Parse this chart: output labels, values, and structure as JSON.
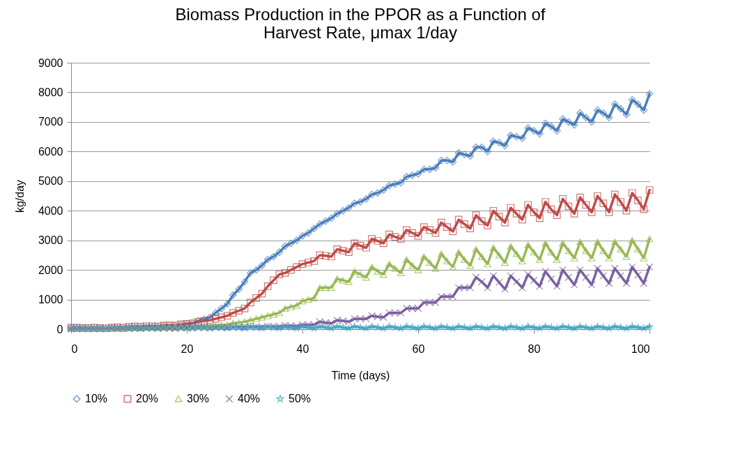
{
  "chart_data": {
    "type": "line",
    "title": "Biomass Production in the PPOR as a Function of Harvest Rate, μmax 1/day",
    "xlabel": "Time (days)",
    "ylabel": "kg/day",
    "x": [
      0,
      1,
      2,
      3,
      4,
      5,
      6,
      7,
      8,
      9,
      10,
      11,
      12,
      13,
      14,
      15,
      16,
      17,
      18,
      19,
      20,
      21,
      22,
      23,
      24,
      25,
      26,
      27,
      28,
      29,
      30,
      31,
      32,
      33,
      34,
      35,
      36,
      37,
      38,
      39,
      40,
      41,
      42,
      43,
      44,
      45,
      46,
      47,
      48,
      49,
      50,
      51,
      52,
      53,
      54,
      55,
      56,
      57,
      58,
      59,
      60,
      61,
      62,
      63,
      64,
      65,
      66,
      67,
      68,
      69,
      70,
      71,
      72,
      73,
      74,
      75,
      76,
      77,
      78,
      79,
      80,
      81,
      82,
      83,
      84,
      85,
      86,
      87,
      88,
      89,
      90,
      91,
      92,
      93,
      94,
      95,
      96,
      97,
      98,
      99,
      100
    ],
    "xlim": [
      0,
      100
    ],
    "xticks": [
      0,
      20,
      40,
      60,
      80,
      100
    ],
    "ylim": [
      0,
      9000
    ],
    "yticks": [
      0,
      1000,
      2000,
      3000,
      4000,
      5000,
      6000,
      7000,
      8000,
      9000
    ],
    "grid": "y",
    "legend": "bottom",
    "line_style": "solid",
    "series": [
      {
        "name": "10%",
        "color": "#4a7ebb",
        "marker": "diamond",
        "values": [
          50,
          40,
          30,
          20,
          30,
          30,
          20,
          40,
          40,
          30,
          50,
          60,
          50,
          70,
          80,
          70,
          100,
          120,
          110,
          150,
          170,
          200,
          280,
          330,
          400,
          550,
          700,
          850,
          1150,
          1350,
          1600,
          1900,
          2000,
          2150,
          2350,
          2450,
          2600,
          2800,
          2900,
          3000,
          3150,
          3250,
          3400,
          3550,
          3650,
          3750,
          3900,
          4000,
          4100,
          4250,
          4300,
          4400,
          4550,
          4600,
          4700,
          4850,
          4900,
          4950,
          5150,
          5200,
          5250,
          5400,
          5400,
          5450,
          5700,
          5700,
          5650,
          5950,
          5900,
          5850,
          6150,
          6150,
          6000,
          6350,
          6300,
          6200,
          6550,
          6500,
          6450,
          6800,
          6700,
          6600,
          6950,
          6850,
          6700,
          7100,
          7000,
          6900,
          7300,
          7150,
          7000,
          7400,
          7300,
          7150,
          7600,
          7450,
          7250,
          7750,
          7600,
          7400,
          7950
        ]
      },
      {
        "name": "20%",
        "color": "#be4b48",
        "marker": "square",
        "values": [
          50,
          50,
          40,
          40,
          50,
          40,
          30,
          50,
          60,
          50,
          80,
          90,
          80,
          100,
          100,
          90,
          120,
          130,
          120,
          160,
          180,
          200,
          250,
          280,
          300,
          350,
          400,
          450,
          550,
          620,
          700,
          900,
          1050,
          1200,
          1450,
          1650,
          1850,
          1900,
          2000,
          2100,
          2200,
          2250,
          2300,
          2500,
          2480,
          2450,
          2700,
          2650,
          2600,
          2900,
          2820,
          2750,
          3050,
          2980,
          2900,
          3200,
          3120,
          3050,
          3350,
          3250,
          3150,
          3450,
          3350,
          3250,
          3600,
          3450,
          3300,
          3700,
          3550,
          3400,
          3850,
          3650,
          3500,
          4000,
          3800,
          3600,
          4100,
          3900,
          3700,
          4200,
          3950,
          3750,
          4300,
          4050,
          3850,
          4400,
          4150,
          3900,
          4450,
          4200,
          3950,
          4500,
          4250,
          3950,
          4550,
          4300,
          4000,
          4600,
          4350,
          4050,
          4700
        ]
      },
      {
        "name": "30%",
        "color": "#98b954",
        "marker": "triangle",
        "values": [
          20,
          20,
          20,
          20,
          20,
          20,
          30,
          30,
          30,
          30,
          40,
          40,
          40,
          50,
          50,
          50,
          60,
          60,
          60,
          70,
          70,
          80,
          90,
          100,
          110,
          120,
          140,
          150,
          200,
          220,
          250,
          300,
          350,
          400,
          450,
          500,
          550,
          700,
          750,
          800,
          950,
          1000,
          1050,
          1400,
          1400,
          1400,
          1700,
          1650,
          1600,
          1950,
          1850,
          1750,
          2100,
          1950,
          1850,
          2200,
          2050,
          1900,
          2350,
          2150,
          2000,
          2450,
          2250,
          2050,
          2550,
          2300,
          2100,
          2600,
          2350,
          2150,
          2700,
          2450,
          2200,
          2750,
          2500,
          2250,
          2800,
          2550,
          2300,
          2850,
          2600,
          2350,
          2900,
          2600,
          2350,
          2900,
          2650,
          2400,
          2950,
          2650,
          2400,
          2950,
          2650,
          2400,
          2950,
          2700,
          2450,
          3000,
          2700,
          2400,
          3050
        ]
      },
      {
        "name": "40%",
        "color": "#7d60a0",
        "marker": "cross",
        "values": [
          10,
          10,
          10,
          10,
          10,
          10,
          10,
          20,
          20,
          20,
          20,
          20,
          20,
          30,
          30,
          30,
          30,
          30,
          30,
          40,
          40,
          40,
          50,
          50,
          50,
          60,
          60,
          60,
          70,
          70,
          70,
          80,
          80,
          80,
          90,
          90,
          90,
          120,
          110,
          100,
          150,
          150,
          150,
          250,
          220,
          200,
          300,
          280,
          250,
          350,
          350,
          350,
          450,
          420,
          400,
          550,
          550,
          550,
          700,
          700,
          700,
          900,
          900,
          900,
          1100,
          1100,
          1100,
          1400,
          1400,
          1400,
          1750,
          1600,
          1400,
          1800,
          1580,
          1350,
          1800,
          1600,
          1400,
          1850,
          1650,
          1450,
          1950,
          1700,
          1450,
          2000,
          1750,
          1500,
          2000,
          1750,
          1500,
          2050,
          1800,
          1550,
          2050,
          1800,
          1550,
          2100,
          1830,
          1550,
          2100
        ]
      },
      {
        "name": "50%",
        "color": "#46aac5",
        "marker": "star",
        "values": [
          30,
          40,
          30,
          30,
          40,
          30,
          30,
          40,
          30,
          30,
          40,
          40,
          30,
          40,
          40,
          30,
          50,
          40,
          30,
          50,
          40,
          30,
          60,
          50,
          30,
          60,
          50,
          30,
          70,
          50,
          30,
          80,
          50,
          30,
          80,
          50,
          30,
          80,
          50,
          30,
          90,
          60,
          30,
          90,
          60,
          30,
          90,
          60,
          30,
          90,
          60,
          30,
          90,
          60,
          30,
          90,
          60,
          30,
          90,
          60,
          30,
          90,
          60,
          30,
          90,
          60,
          30,
          90,
          60,
          30,
          90,
          60,
          30,
          90,
          60,
          30,
          90,
          60,
          30,
          90,
          60,
          30,
          90,
          60,
          30,
          90,
          60,
          30,
          90,
          60,
          30,
          90,
          60,
          30,
          90,
          60,
          30,
          90,
          60,
          30,
          90
        ]
      }
    ]
  }
}
